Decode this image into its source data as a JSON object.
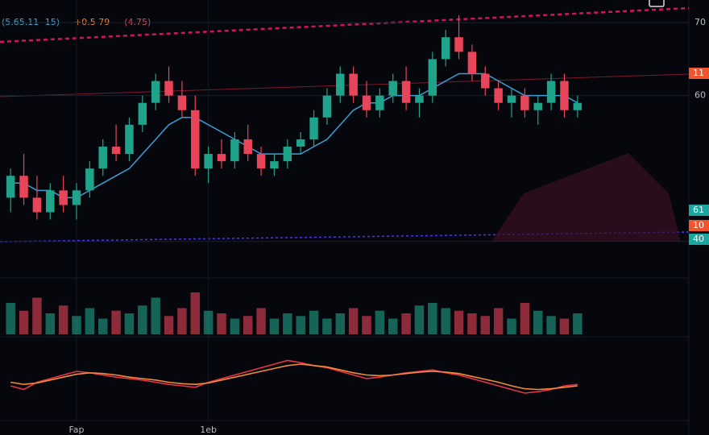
{
  "chart_data": {
    "type": "candlestick",
    "header_texts": [
      {
        "text": "(5.65.11 -15)",
        "color": "#3fa7c9"
      },
      {
        "text": "+0.5 79",
        "color": "#f0803c"
      },
      {
        "text": "(4.75)",
        "color": "#e8445a"
      }
    ],
    "categories": [
      null,
      null,
      null,
      null,
      null,
      "Fap",
      null,
      null,
      null,
      null,
      null,
      null,
      null,
      null,
      null,
      "1eb",
      null,
      null,
      null,
      null,
      null,
      null,
      null,
      null,
      null,
      null,
      null,
      null,
      null,
      null,
      null,
      null,
      null,
      null,
      null,
      null,
      null,
      null,
      null,
      null,
      null,
      null,
      null,
      null
    ],
    "ohlc": [
      [
        46,
        50,
        44,
        49
      ],
      [
        49,
        52,
        45,
        46
      ],
      [
        46,
        49,
        43,
        44
      ],
      [
        44,
        48,
        43,
        47
      ],
      [
        47,
        49,
        44,
        45
      ],
      [
        45,
        48,
        43,
        47
      ],
      [
        47,
        51,
        46,
        50
      ],
      [
        50,
        54,
        49,
        53
      ],
      [
        53,
        56,
        51,
        52
      ],
      [
        52,
        57,
        51,
        56
      ],
      [
        56,
        60,
        55,
        59
      ],
      [
        59,
        63,
        58,
        62
      ],
      [
        62,
        64,
        59,
        60
      ],
      [
        60,
        62,
        57,
        58
      ],
      [
        58,
        60,
        49,
        50
      ],
      [
        50,
        53,
        48,
        52
      ],
      [
        52,
        54,
        50,
        51
      ],
      [
        51,
        55,
        50,
        54
      ],
      [
        54,
        56,
        51,
        52
      ],
      [
        52,
        53,
        49,
        50
      ],
      [
        50,
        52,
        49,
        51
      ],
      [
        51,
        54,
        50,
        53
      ],
      [
        53,
        55,
        52,
        54
      ],
      [
        54,
        58,
        53,
        57
      ],
      [
        57,
        61,
        56,
        60
      ],
      [
        60,
        64,
        59,
        63
      ],
      [
        63,
        64,
        59,
        60
      ],
      [
        60,
        62,
        57,
        58
      ],
      [
        58,
        61,
        57,
        60
      ],
      [
        60,
        63,
        59,
        62
      ],
      [
        62,
        64,
        58,
        59
      ],
      [
        59,
        61,
        57,
        60
      ],
      [
        60,
        66,
        59,
        65
      ],
      [
        65,
        69,
        64,
        68
      ],
      [
        68,
        71,
        65,
        66
      ],
      [
        66,
        67,
        62,
        63
      ],
      [
        63,
        64,
        60,
        61
      ],
      [
        61,
        62,
        58,
        59
      ],
      [
        59,
        61,
        57,
        60
      ],
      [
        60,
        61,
        57,
        58
      ],
      [
        58,
        60,
        56,
        59
      ],
      [
        59,
        63,
        58,
        62
      ],
      [
        62,
        63,
        57,
        58
      ],
      [
        58,
        60,
        57,
        59
      ]
    ],
    "up_color": "#1fa38a",
    "down_color": "#e8445a",
    "ma": {
      "color": "#3aa0d8",
      "values": [
        48,
        48,
        47,
        47,
        46,
        46,
        47,
        48,
        49,
        50,
        52,
        54,
        56,
        57,
        57,
        56,
        55,
        54,
        53,
        52,
        52,
        52,
        52,
        53,
        54,
        56,
        58,
        59,
        59,
        60,
        60,
        60,
        61,
        62,
        63,
        63,
        63,
        62,
        61,
        60,
        60,
        60,
        60,
        59
      ]
    },
    "ylim": [
      35,
      72
    ],
    "yticks": [
      40,
      60,
      70
    ],
    "price_badges": [
      {
        "value": 11,
        "color": "#f2542d"
      },
      {
        "value": 61,
        "color": "#1aa7a0"
      },
      {
        "value": 10,
        "color": "#f2542d"
      },
      {
        "value": 40,
        "color": "#1aa7a0"
      }
    ],
    "volume": [
      60,
      45,
      70,
      40,
      55,
      35,
      50,
      30,
      45,
      40,
      55,
      70,
      35,
      50,
      80,
      45,
      40,
      30,
      35,
      50,
      30,
      40,
      35,
      45,
      30,
      40,
      50,
      35,
      45,
      30,
      40,
      55,
      60,
      50,
      45,
      40,
      35,
      50,
      30,
      60,
      45,
      35,
      30,
      40
    ],
    "vlim": [
      0,
      100
    ],
    "oscillator": [
      {
        "color": "#e8334a",
        "values": [
          40,
          35,
          45,
          50,
          55,
          60,
          58,
          55,
          52,
          50,
          48,
          45,
          42,
          40,
          38,
          45,
          50,
          55,
          60,
          65,
          70,
          75,
          72,
          68,
          65,
          60,
          55,
          50,
          52,
          55,
          58,
          60,
          62,
          58,
          55,
          50,
          45,
          40,
          35,
          30,
          32,
          35,
          40,
          42
        ]
      },
      {
        "color": "#f08a3c",
        "values": [
          45,
          42,
          44,
          48,
          52,
          56,
          58,
          57,
          55,
          52,
          50,
          48,
          45,
          43,
          42,
          44,
          48,
          52,
          56,
          60,
          64,
          68,
          70,
          68,
          66,
          62,
          58,
          55,
          54,
          55,
          57,
          59,
          60,
          59,
          57,
          53,
          49,
          45,
          40,
          36,
          35,
          36,
          38,
          40
        ]
      }
    ],
    "olim": [
      0,
      100
    ]
  }
}
